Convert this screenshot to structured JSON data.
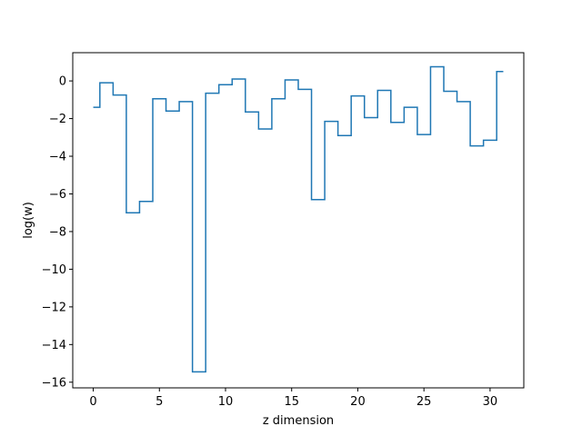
{
  "chart_data": {
    "type": "line",
    "drawstyle": "steps-mid",
    "title": "",
    "xlabel": "z dimension",
    "ylabel": "log(w)",
    "xlim": [
      -1.55,
      32.55
    ],
    "ylim": [
      -16.3,
      1.5
    ],
    "xticks": [
      0,
      5,
      10,
      15,
      20,
      25,
      30
    ],
    "yticks": [
      0,
      -2,
      -4,
      -6,
      -8,
      -10,
      -12,
      -14,
      -16
    ],
    "xtick_labels": [
      "0",
      "5",
      "10",
      "15",
      "20",
      "25",
      "30"
    ],
    "ytick_labels": [
      "0",
      "−2",
      "−4",
      "−6",
      "−8",
      "−10",
      "−12",
      "−14",
      "−16"
    ],
    "grid": false,
    "legend": false,
    "series": [
      {
        "color": "#1f77b4",
        "x": [
          0,
          1,
          2,
          3,
          4,
          5,
          6,
          7,
          8,
          9,
          10,
          11,
          12,
          13,
          14,
          15,
          16,
          17,
          18,
          19,
          20,
          21,
          22,
          23,
          24,
          25,
          26,
          27,
          28,
          29,
          30,
          31
        ],
        "values": [
          -1.4,
          -0.1,
          -0.75,
          -7.0,
          -6.4,
          -0.95,
          -1.6,
          -1.1,
          -15.45,
          -0.65,
          -0.2,
          0.1,
          -1.65,
          -2.55,
          -0.95,
          0.05,
          -0.45,
          -6.3,
          -2.15,
          -2.9,
          -0.8,
          -1.95,
          -0.5,
          -2.2,
          -1.4,
          -2.85,
          0.75,
          -0.55,
          -1.1,
          -3.45,
          -3.15,
          0.5
        ]
      }
    ]
  }
}
